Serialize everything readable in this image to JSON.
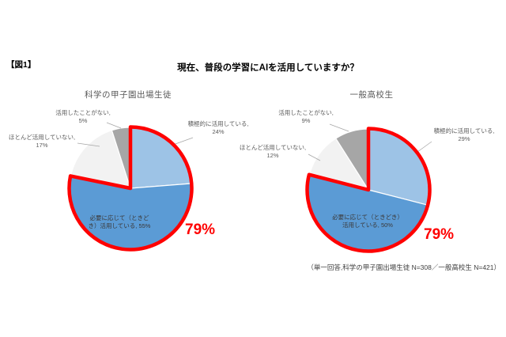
{
  "figure_label": "【図1】",
  "title": "現在、普段の学習にAIを活用していますか？",
  "footnote": "（単一回答,科学の甲子園出場生徒 N=308／一般高校生 N=421）",
  "palette": {
    "active_blue_light": "#9DC3E6",
    "sometimes_blue": "#5B9BD5",
    "rarely_gray_light": "#F2F2F2",
    "never_gray": "#A6A6A6",
    "highlight_red": "#FF0000",
    "leader_gray": "#A6A6A6",
    "title_gray": "#595959"
  },
  "chart_data": [
    {
      "type": "pie",
      "title": "科学の甲子園出場生徒",
      "categories": [
        "積極的に活用している",
        "必要に応じて（ときどき）活用している",
        "ほとんど活用していない",
        "活用したことがない"
      ],
      "values": [
        24,
        55,
        17,
        5
      ],
      "colors": [
        "#9DC3E6",
        "#5B9BD5",
        "#F2F2F2",
        "#A6A6A6"
      ],
      "start_angle": 0,
      "direction": "clockwise",
      "legend": "none",
      "highlight": {
        "label": "79%",
        "slices": [
          0,
          1
        ],
        "color": "#FF0000"
      },
      "data_labels": {
        "active": {
          "line1": "積極的に活用している,",
          "line2": "24%"
        },
        "sometimes": {
          "line1": "必要に応じて（ときど",
          "line2": "き）活用している, 55%"
        },
        "rarely": {
          "line1": "ほとんど活用していない,",
          "line2": "17%"
        },
        "never": {
          "line1": "活用したことがない,",
          "line2": "5%"
        }
      }
    },
    {
      "type": "pie",
      "title": "一般高校生",
      "categories": [
        "積極的に活用している",
        "必要に応じて（ときどき）活用している",
        "ほとんど活用していない",
        "活用したことがない"
      ],
      "values": [
        29,
        50,
        12,
        9
      ],
      "colors": [
        "#9DC3E6",
        "#5B9BD5",
        "#F2F2F2",
        "#A6A6A6"
      ],
      "start_angle": 0,
      "direction": "clockwise",
      "legend": "none",
      "highlight": {
        "label": "79%",
        "slices": [
          0,
          1
        ],
        "color": "#FF0000"
      },
      "data_labels": {
        "active": {
          "line1": "積極的に活用している,",
          "line2": "29%"
        },
        "sometimes": {
          "line1": "必要に応じて（ときどき）",
          "line2": "活用している, 50%"
        },
        "rarely": {
          "line1": "ほとんど活用していない,",
          "line2": "12%"
        },
        "never": {
          "line1": "活用したことがない,",
          "line2": "9%"
        }
      }
    }
  ]
}
